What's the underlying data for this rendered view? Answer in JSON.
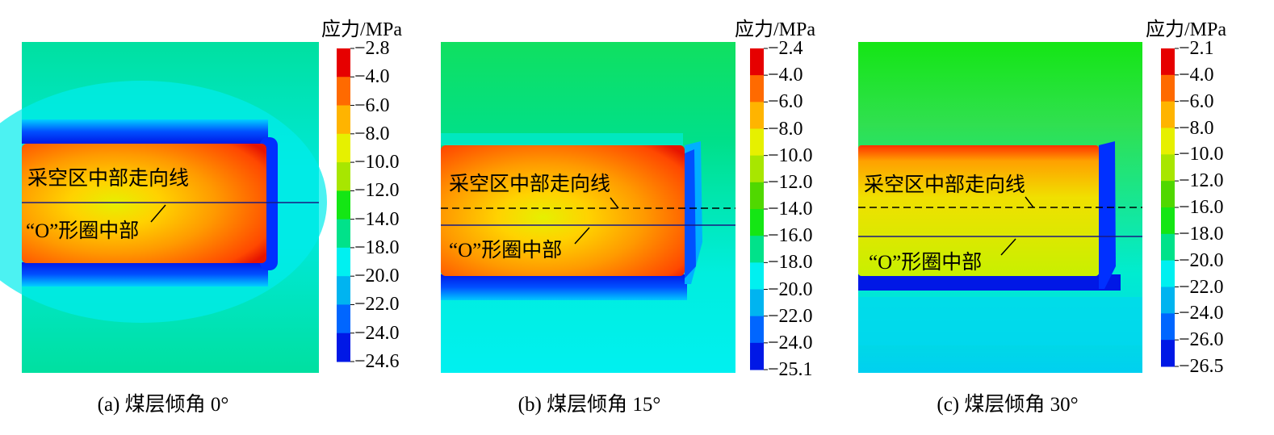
{
  "colors": [
    "#e60000",
    "#ff6a00",
    "#ffb400",
    "#e6f000",
    "#a8e600",
    "#50d800",
    "#14e614",
    "#00e28a",
    "#00f0f0",
    "#00b4f0",
    "#0066ff",
    "#0018e6"
  ],
  "panels": [
    {
      "caption": "(a) 煤层倾角 0°",
      "unit_label": "应力/MPa",
      "scale_labels": [
        "−2.8",
        "−4.0",
        "−6.0",
        "−8.0",
        "−10.0",
        "−12.0",
        "−14.0",
        "−18.0",
        "−20.0",
        "−22.0",
        "−24.0",
        "−24.6"
      ],
      "strike_line_label": "采空区中部走向线",
      "o_ring_label": "“O”形圈中部",
      "dashed_reference": false
    },
    {
      "caption": "(b) 煤层倾角 15°",
      "unit_label": "应力/MPa",
      "scale_labels": [
        "−2.4",
        "−4.0",
        "−6.0",
        "−8.0",
        "−10.0",
        "−12.0",
        "−14.0",
        "−16.0",
        "−18.0",
        "−20.0",
        "−22.0",
        "−24.0",
        "−25.1"
      ],
      "strike_line_label": "采空区中部走向线",
      "o_ring_label": "“O”形圈中部",
      "dashed_reference": true
    },
    {
      "caption": "(c) 煤层倾角 30°",
      "unit_label": "应力/MPa",
      "scale_labels": [
        "−2.1",
        "−4.0",
        "−6.0",
        "−8.0",
        "−10.0",
        "−12.0",
        "−16.0",
        "−18.0",
        "−20.0",
        "−22.0",
        "−24.0",
        "−26.0",
        "−26.5"
      ],
      "strike_line_label": "采空区中部走向线",
      "o_ring_label": "“O”形圈中部",
      "dashed_reference": true
    }
  ]
}
